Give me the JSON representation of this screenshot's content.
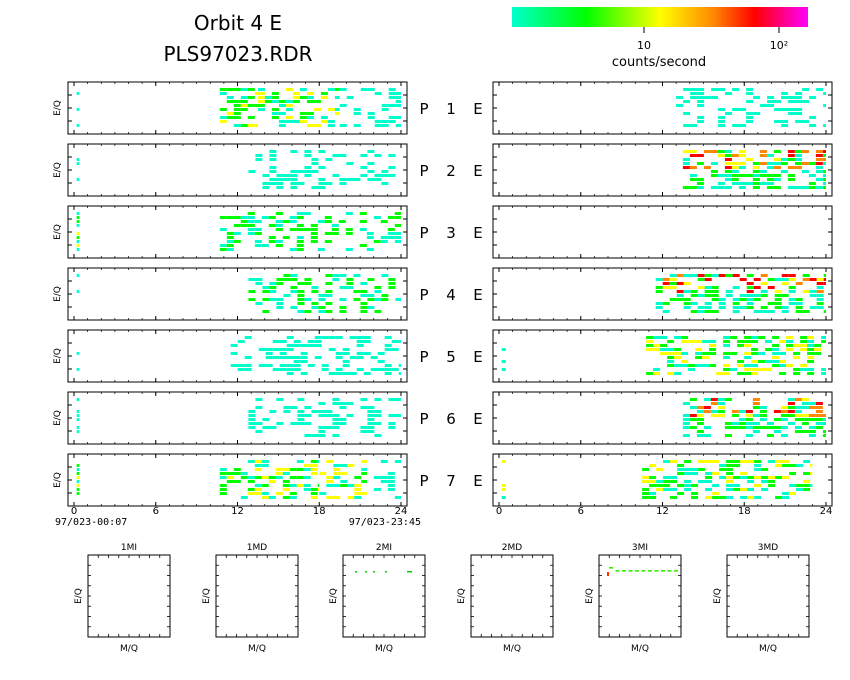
{
  "header": {
    "title": "Orbit 4 E",
    "subtitle": "PLS97023.RDR"
  },
  "colorbar": {
    "label": "counts/second",
    "tick_labels": [
      "10",
      "10²"
    ],
    "stops": [
      "#00ffcc",
      "#00ff00",
      "#ffff00",
      "#ff8800",
      "#ff0000",
      "#ff00ff"
    ]
  },
  "panels": {
    "y_label": "E/Q",
    "row_labels": [
      "P 1 E",
      "P 2 E",
      "P 3 E",
      "P 4 E",
      "P 5 E",
      "P 6 E",
      "P 7 E"
    ]
  },
  "x_axis": {
    "ticks": [
      0,
      6,
      12,
      18,
      24
    ],
    "start_label": "97/023-00:07",
    "end_label": "97/023-23:45"
  },
  "mass_panels": {
    "titles": [
      "1MI",
      "1MD",
      "2MI",
      "2MD",
      "3MI",
      "3MD"
    ],
    "x_label": "M/Q",
    "y_label": "E/Q"
  },
  "chart_data": {
    "type": "heatmap",
    "x_range": [
      0,
      24
    ],
    "x_unit": "hours",
    "color_scale": "log",
    "left_panels": [
      {
        "row": "P 1 E",
        "activity": [
          {
            "x": [
              0.2,
              0.4
            ],
            "level": 1
          },
          {
            "x": [
              10.7,
              13.5
            ],
            "level": 2
          },
          {
            "x": [
              13.5,
              19.5
            ],
            "level": 2
          },
          {
            "x": [
              19.5,
              24.0
            ],
            "level": 1
          }
        ]
      },
      {
        "row": "P 2 E",
        "activity": [
          {
            "x": [
              0.2,
              0.4
            ],
            "level": 1
          },
          {
            "x": [
              12.8,
              24.0
            ],
            "level": 1
          }
        ]
      },
      {
        "row": "P 3 E",
        "activity": [
          {
            "x": [
              0.2,
              0.4
            ],
            "level": 2
          },
          {
            "x": [
              10.7,
              24.0
            ],
            "level": 1.5
          }
        ]
      },
      {
        "row": "P 4 E",
        "activity": [
          {
            "x": [
              0.2,
              0.4
            ],
            "level": 1
          },
          {
            "x": [
              12.8,
              24.0
            ],
            "level": 1.5
          }
        ]
      },
      {
        "row": "P 5 E",
        "activity": [
          {
            "x": [
              0.2,
              0.4
            ],
            "level": 1
          },
          {
            "x": [
              11.5,
              24.0
            ],
            "level": 1
          }
        ]
      },
      {
        "row": "P 6 E",
        "activity": [
          {
            "x": [
              0.2,
              0.4
            ],
            "level": 1
          },
          {
            "x": [
              12.8,
              24.0
            ],
            "level": 1
          }
        ]
      },
      {
        "row": "P 7 E",
        "activity": [
          {
            "x": [
              0.2,
              0.4
            ],
            "level": 2
          },
          {
            "x": [
              10.7,
              18.0
            ],
            "level": 2
          },
          {
            "x": [
              18.0,
              21.5
            ],
            "level": 2.5
          },
          {
            "x": [
              22.0,
              24.0
            ],
            "level": 1
          }
        ]
      }
    ],
    "right_panels": [
      {
        "row": "P 1 E",
        "activity": [
          {
            "x": [
              13.0,
              24.0
            ],
            "level": 1
          }
        ]
      },
      {
        "row": "P 2 E",
        "activity": [
          {
            "x": [
              13.5,
              24.0
            ],
            "level": 4
          }
        ]
      },
      {
        "row": "P 3 E",
        "activity": []
      },
      {
        "row": "P 4 E",
        "activity": [
          {
            "x": [
              11.5,
              24.0
            ],
            "level": 4
          }
        ]
      },
      {
        "row": "P 5 E",
        "activity": [
          {
            "x": [
              0.2,
              0.5
            ],
            "level": 1
          },
          {
            "x": [
              10.8,
              24.0
            ],
            "level": 2
          }
        ]
      },
      {
        "row": "P 6 E",
        "activity": [
          {
            "x": [
              13.5,
              24.0
            ],
            "level": 4
          }
        ]
      },
      {
        "row": "P 7 E",
        "activity": [
          {
            "x": [
              0.2,
              0.5
            ],
            "level": 2
          },
          {
            "x": [
              10.5,
              23.0
            ],
            "level": 2.5
          }
        ]
      }
    ],
    "mass_panel_traces": [
      {
        "panel": "1MI",
        "points": []
      },
      {
        "panel": "1MD",
        "points": []
      },
      {
        "panel": "2MI",
        "trace": "sparse dashed line near top"
      },
      {
        "panel": "2MD",
        "points": []
      },
      {
        "panel": "3MI",
        "trace": "dashed line near top with red point at left"
      },
      {
        "panel": "3MD",
        "points": []
      }
    ]
  }
}
